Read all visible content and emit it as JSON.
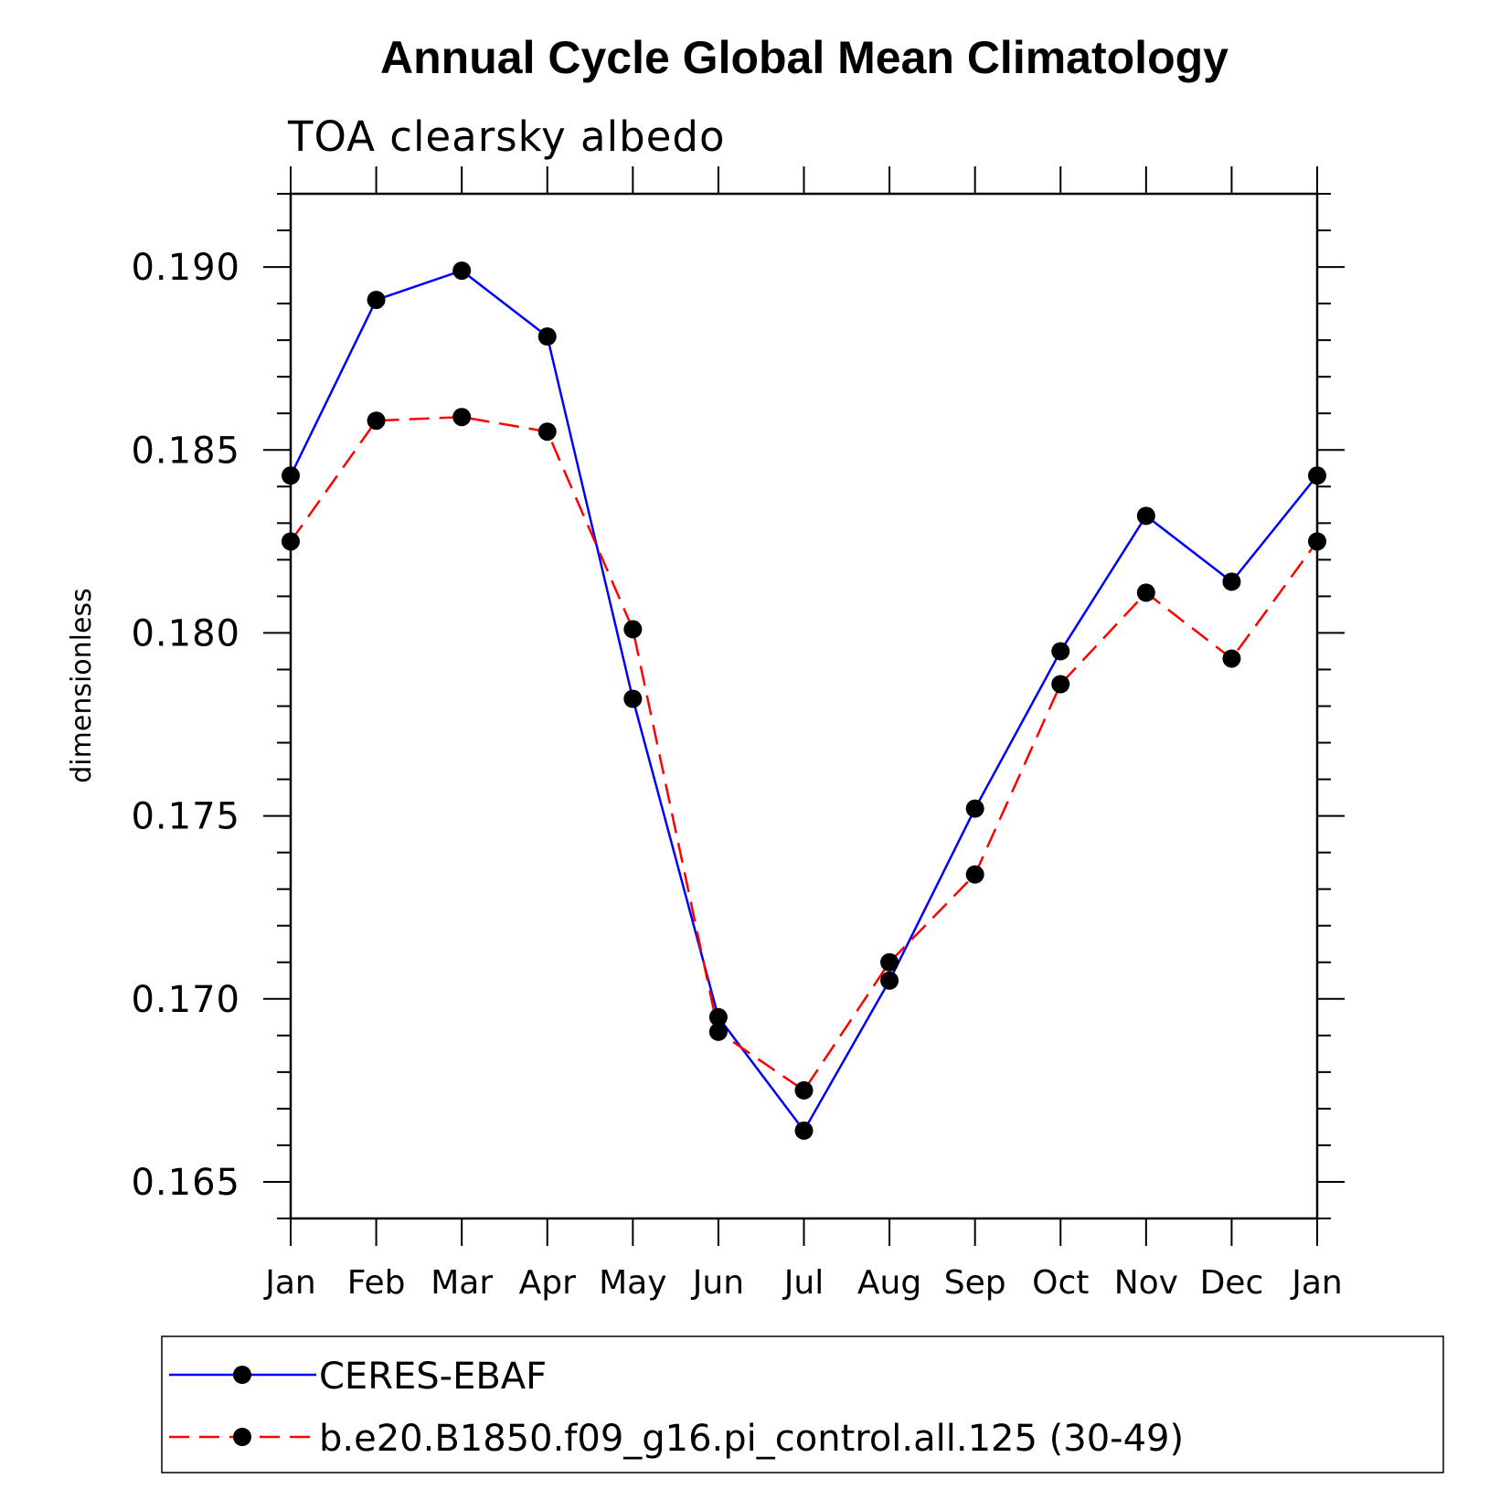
{
  "chart_data": {
    "type": "line",
    "title": "Annual Cycle Global Mean Climatology",
    "subtitle": "TOA clearsky albedo",
    "ylabel": "dimensionless",
    "xlabel": "",
    "categories": [
      "Jan",
      "Feb",
      "Mar",
      "Apr",
      "May",
      "Jun",
      "Jul",
      "Aug",
      "Sep",
      "Oct",
      "Nov",
      "Dec",
      "Jan"
    ],
    "ylim": [
      0.164,
      0.192
    ],
    "yticks": [
      0.165,
      0.17,
      0.175,
      0.18,
      0.185,
      0.19
    ],
    "ytick_labels": [
      "0.165",
      "0.170",
      "0.175",
      "0.180",
      "0.185",
      "0.190"
    ],
    "grid": false,
    "legend_position": "bottom",
    "series": [
      {
        "name": "CERES-EBAF",
        "color": "#0000ff",
        "dash": "solid",
        "marker": "circle",
        "values": [
          0.1843,
          0.1891,
          0.1899,
          0.1881,
          0.1782,
          0.1695,
          0.1664,
          0.1705,
          0.1752,
          0.1795,
          0.1832,
          0.1814,
          0.1843
        ]
      },
      {
        "name": "b.e20.B1850.f09_g16.pi_control.all.125 (30-49)",
        "color": "#ff0000",
        "dash": "dashed",
        "marker": "circle",
        "values": [
          0.1825,
          0.1858,
          0.1859,
          0.1855,
          0.1801,
          0.1691,
          0.1675,
          0.171,
          0.1734,
          0.1786,
          0.1811,
          0.1793,
          0.1825
        ]
      }
    ]
  }
}
